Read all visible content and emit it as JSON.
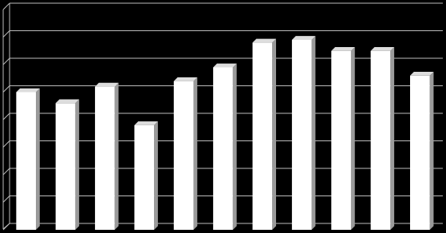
{
  "chart_data": {
    "type": "bar",
    "categories": [
      null,
      null,
      null,
      null,
      null,
      null,
      null,
      null,
      null,
      null,
      null
    ],
    "values": [
      5.0,
      4.6,
      5.2,
      3.8,
      5.4,
      5.9,
      6.8,
      6.9,
      6.5,
      6.5,
      5.6
    ],
    "color": "#ffffff",
    "ylim": [
      0,
      8
    ],
    "yticks": [
      0,
      1,
      2,
      3,
      4,
      5,
      6,
      7,
      8
    ],
    "grid": true
  }
}
